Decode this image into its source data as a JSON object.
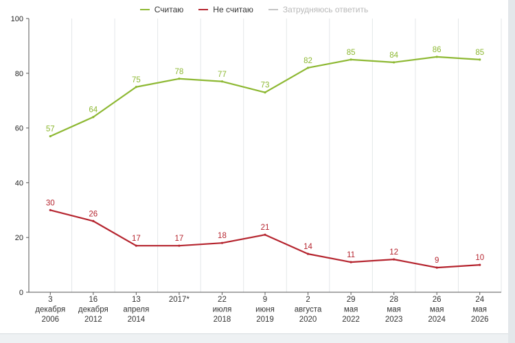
{
  "legend": {
    "items": [
      {
        "label": "Считаю",
        "color": "#8db832",
        "active": true
      },
      {
        "label": "Не считаю",
        "color": "#b5242e",
        "active": true
      },
      {
        "label": "Затрудняюсь ответить",
        "color": "#c4c4c4",
        "active": false
      }
    ]
  },
  "chart_data": {
    "type": "line",
    "categories": [
      [
        "3",
        "декабря",
        "2006"
      ],
      [
        "16",
        "декабря",
        "2012"
      ],
      [
        "13",
        "апреля",
        "2014"
      ],
      [
        "2017*"
      ],
      [
        "22",
        "июля",
        "2018"
      ],
      [
        "9",
        "июня",
        "2019"
      ],
      [
        "2",
        "августа",
        "2020"
      ],
      [
        "29",
        "мая",
        "2022"
      ],
      [
        "28",
        "мая",
        "2023"
      ],
      [
        "26",
        "мая",
        "2024"
      ],
      [
        "24",
        "мая",
        "2026"
      ]
    ],
    "series": [
      {
        "name": "Считаю",
        "color": "#8db832",
        "values": [
          57,
          64,
          75,
          78,
          77,
          73,
          82,
          85,
          84,
          86,
          85
        ]
      },
      {
        "name": "Не считаю",
        "color": "#b5242e",
        "values": [
          30,
          26,
          17,
          17,
          18,
          21,
          14,
          11,
          12,
          9,
          10
        ]
      }
    ],
    "y_ticks": [
      0,
      20,
      40,
      60,
      80,
      100
    ],
    "ylim": [
      0,
      100
    ],
    "grid": "vertical category separators",
    "legend_position": "top-center"
  }
}
